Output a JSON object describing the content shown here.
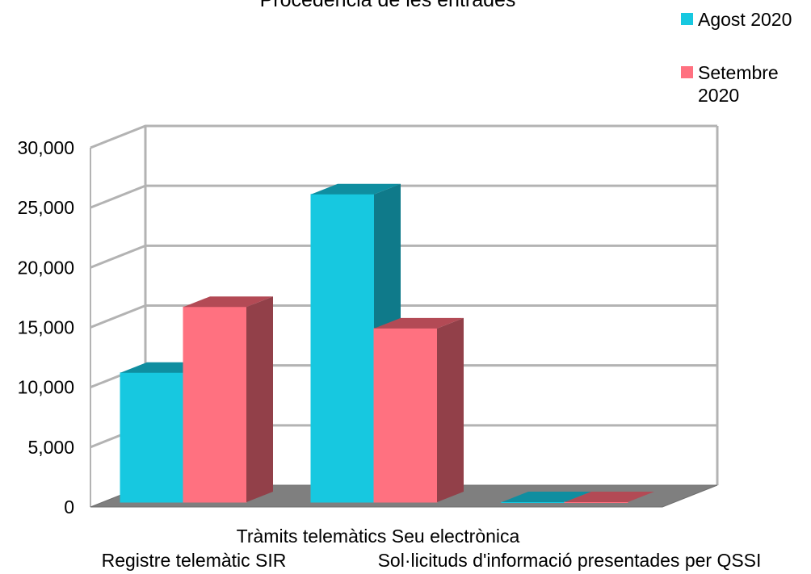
{
  "chart_data": {
    "type": "bar",
    "title": "Procedència de les entrades",
    "categories": [
      "Registre telemàtic SIR",
      "Tràmits telemàtics Seu electrònica",
      "Sol·licituds d'informació presentades per QSSI"
    ],
    "series": [
      {
        "name": "Agost 2020",
        "values": [
          10800,
          25700,
          0
        ],
        "color": "#17c8e0",
        "top_color": "#0f8ea0",
        "side_color": "#0f7a8a"
      },
      {
        "name": "Setembre 2020",
        "values": [
          16300,
          14500,
          0
        ],
        "color": "#ff7180",
        "top_color": "#b34a55",
        "side_color": "#924049"
      }
    ],
    "ylim": [
      0,
      30000
    ],
    "y_ticks": [
      0,
      5000,
      10000,
      15000,
      20000,
      25000,
      30000
    ],
    "y_tick_labels": [
      "0",
      "5,000",
      "10,000",
      "15,000",
      "20,000",
      "25,000",
      "30,000"
    ],
    "xlabel": "",
    "ylabel": "",
    "grid": true,
    "legend_position": "top-right",
    "style": "3d-bar"
  }
}
